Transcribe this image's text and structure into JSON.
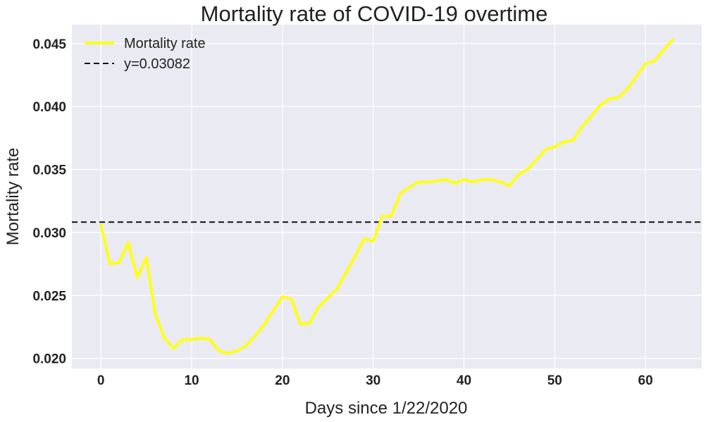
{
  "chart_data": {
    "type": "line",
    "title": "Mortality rate of COVID-19 overtime",
    "xlabel": "Days since 1/22/2020",
    "ylabel": "Mortality rate",
    "xlim": [
      -3.2,
      66.2
    ],
    "ylim": [
      0.0192,
      0.0465
    ],
    "x_ticks": [
      0,
      10,
      20,
      30,
      40,
      50,
      60
    ],
    "y_ticks": [
      0.02,
      0.025,
      0.03,
      0.035,
      0.04,
      0.045
    ],
    "y_tick_labels": [
      "0.020",
      "0.025",
      "0.030",
      "0.035",
      "0.040",
      "0.045"
    ],
    "grid": true,
    "legend_position": "top-left",
    "series": [
      {
        "name": "Mortality rate",
        "color": "#ffff14",
        "style": "solid",
        "x": [
          0,
          1,
          2,
          3,
          4,
          5,
          6,
          7,
          8,
          9,
          10,
          11,
          12,
          13,
          14,
          15,
          16,
          17,
          18,
          19,
          20,
          21,
          22,
          23,
          24,
          25,
          26,
          27,
          28,
          29,
          30,
          31,
          32,
          33,
          34,
          35,
          36,
          37,
          38,
          39,
          40,
          41,
          42,
          43,
          44,
          45,
          46,
          47,
          48,
          49,
          50,
          51,
          52,
          53,
          54,
          55,
          56,
          57,
          58,
          59,
          60,
          61,
          62,
          63
        ],
        "values": [
          0.0306,
          0.0275,
          0.0276,
          0.0292,
          0.0264,
          0.028,
          0.0235,
          0.0216,
          0.0208,
          0.0215,
          0.0215,
          0.0216,
          0.0215,
          0.0206,
          0.0204,
          0.0206,
          0.021,
          0.0218,
          0.0227,
          0.0238,
          0.0249,
          0.0247,
          0.0227,
          0.0228,
          0.0241,
          0.0248,
          0.0255,
          0.0268,
          0.0281,
          0.0295,
          0.0293,
          0.0313,
          0.0313,
          0.0331,
          0.0336,
          0.034,
          0.034,
          0.0341,
          0.0342,
          0.0339,
          0.0342,
          0.034,
          0.0342,
          0.0342,
          0.034,
          0.0337,
          0.0346,
          0.035,
          0.0358,
          0.0366,
          0.0368,
          0.0372,
          0.0373,
          0.0384,
          0.0392,
          0.0401,
          0.0406,
          0.0407,
          0.0414,
          0.0424,
          0.0434,
          0.0436,
          0.0445,
          0.0453
        ]
      },
      {
        "name": "y=0.03082",
        "color": "#111111",
        "style": "dashed",
        "hline": 0.03082
      }
    ]
  }
}
